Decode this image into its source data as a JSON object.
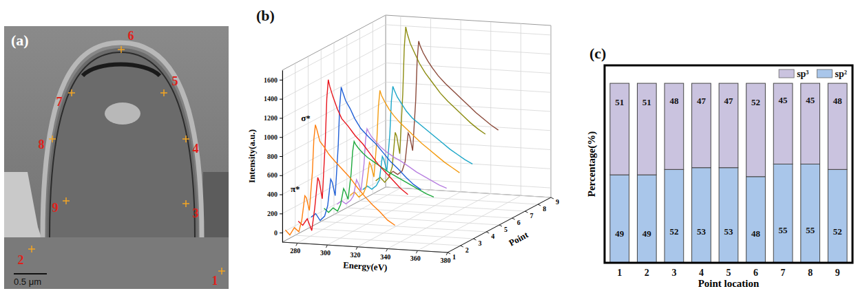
{
  "chart_data": [
    {
      "type": "image",
      "title": "(a)",
      "labels": [
        "1",
        "2",
        "3",
        "4",
        "5",
        "6",
        "7",
        "8",
        "9"
      ],
      "scale_bar": "0.5 μm"
    },
    {
      "type": "line",
      "title": "(b)",
      "x_label": "Energy(eV)",
      "y_label": "Intensity(a.u.)",
      "z_label": "Point",
      "xlim": [
        270,
        380
      ],
      "xticks": [
        280,
        300,
        320,
        340,
        360,
        380
      ],
      "ylim": [
        -100,
        1700
      ],
      "yticks": [
        0,
        200,
        400,
        600,
        800,
        1000,
        1200,
        1400,
        1600
      ],
      "zlim": [
        1,
        9
      ],
      "zticks": [
        1,
        2,
        3,
        4,
        5,
        6,
        7,
        8,
        9
      ],
      "grid": true,
      "annotations": [
        {
          "text": "σ*",
          "x": 292,
          "y": 1150
        },
        {
          "text": "π*",
          "x": 285,
          "y": 400
        }
      ],
      "x": [
        272,
        275,
        278,
        281,
        283,
        285,
        286,
        288,
        290,
        291,
        292,
        293,
        295,
        298,
        301,
        305,
        310,
        315,
        320,
        325,
        330,
        335,
        340,
        345
      ],
      "series": [
        {
          "point": 1,
          "color": "#ff7f0e",
          "values": [
            30,
            -20,
            60,
            20,
            150,
            400,
            380,
            250,
            650,
            1000,
            1150,
            1100,
            980,
            920,
            850,
            780,
            700,
            620,
            520,
            430,
            350,
            280,
            200,
            150
          ]
        },
        {
          "point": 2,
          "color": "#e8141c",
          "values": [
            50,
            10,
            80,
            -40,
            200,
            520,
            480,
            300,
            900,
            1350,
            1550,
            1480,
            1380,
            1250,
            1150,
            1080,
            980,
            900,
            800,
            700,
            620,
            540,
            460,
            400
          ]
        },
        {
          "point": 3,
          "color": "#1f5fd6",
          "values": [
            20,
            60,
            -10,
            40,
            150,
            430,
            400,
            260,
            780,
            1200,
            1400,
            1350,
            1260,
            1180,
            1080,
            980,
            900,
            830,
            740,
            650,
            580,
            500,
            430,
            380
          ]
        },
        {
          "point": 4,
          "color": "#1ca83c",
          "values": [
            40,
            0,
            50,
            20,
            90,
            260,
            230,
            150,
            420,
            650,
            760,
            730,
            690,
            640,
            600,
            560,
            510,
            460,
            420,
            380,
            340,
            300,
            260,
            230
          ]
        },
        {
          "point": 5,
          "color": "#b77fe0",
          "values": [
            10,
            50,
            20,
            60,
            110,
            280,
            250,
            170,
            450,
            700,
            820,
            790,
            740,
            690,
            640,
            590,
            540,
            500,
            450,
            400,
            360,
            320,
            280,
            250
          ]
        },
        {
          "point": 6,
          "color": "#f39c12",
          "values": [
            30,
            70,
            20,
            60,
            140,
            390,
            360,
            240,
            640,
            980,
            1150,
            1100,
            1040,
            960,
            900,
            830,
            760,
            690,
            620,
            560,
            500,
            440,
            390,
            340
          ]
        },
        {
          "point": 7,
          "color": "#1aa6c8",
          "values": [
            20,
            60,
            30,
            70,
            130,
            380,
            350,
            230,
            620,
            960,
            1120,
            1080,
            1010,
            940,
            870,
            800,
            740,
            680,
            620,
            560,
            500,
            450,
            400,
            360
          ]
        },
        {
          "point": 8,
          "color": "#8c8c10",
          "values": [
            40,
            80,
            30,
            90,
            200,
            560,
            520,
            340,
            960,
            1450,
            1670,
            1600,
            1500,
            1400,
            1300,
            1200,
            1100,
            1000,
            920,
            850,
            780,
            710,
            650,
            600
          ]
        },
        {
          "point": 9,
          "color": "#8b4a3a",
          "values": [
            30,
            70,
            40,
            80,
            180,
            480,
            450,
            300,
            820,
            1250,
            1450,
            1400,
            1330,
            1250,
            1180,
            1100,
            1020,
            950,
            880,
            810,
            740,
            680,
            620,
            570
          ]
        }
      ]
    },
    {
      "type": "bar",
      "title": "(c)",
      "stacked": true,
      "data_labels": true,
      "x_label": "Point location",
      "y_label": "Percentage(%)",
      "categories": [
        "1",
        "2",
        "3",
        "4",
        "5",
        "6",
        "7",
        "8",
        "9"
      ],
      "series": [
        {
          "name": "sp²",
          "color": "#a9c6ea",
          "values": [
            49,
            49,
            52,
            53,
            53,
            48,
            55,
            55,
            52
          ]
        },
        {
          "name": "sp³",
          "color": "#cac3df",
          "values": [
            51,
            51,
            48,
            47,
            47,
            52,
            45,
            45,
            48
          ]
        }
      ],
      "ylim": [
        0,
        110
      ],
      "tick_labels": "x",
      "legend": "top-right"
    }
  ]
}
